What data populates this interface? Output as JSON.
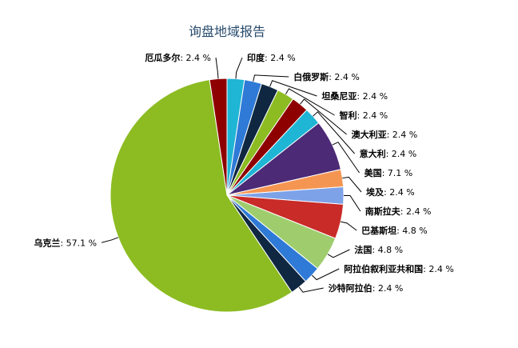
{
  "chart_data": {
    "type": "pie",
    "title": "询盘地域报告",
    "value_suffix": " %",
    "slices": [
      {
        "name": "印度",
        "value": 2.4,
        "color": "#1fb5d4"
      },
      {
        "name": "白俄罗斯",
        "value": 2.4,
        "color": "#2e7ad6"
      },
      {
        "name": "坦桑尼亚",
        "value": 2.4,
        "color": "#0f2741"
      },
      {
        "name": "智利",
        "value": 2.4,
        "color": "#8cbc22"
      },
      {
        "name": "澳大利亚",
        "value": 2.4,
        "color": "#8e0000"
      },
      {
        "name": "意大利",
        "value": 2.4,
        "color": "#1fb5d4"
      },
      {
        "name": "美国",
        "value": 7.1,
        "color": "#4c2a76"
      },
      {
        "name": "埃及",
        "value": 2.4,
        "color": "#f59552"
      },
      {
        "name": "南斯拉夫",
        "value": 2.4,
        "color": "#7da2e8"
      },
      {
        "name": "巴基斯坦",
        "value": 4.8,
        "color": "#c82b28"
      },
      {
        "name": "法国",
        "value": 4.8,
        "color": "#9fcd6e"
      },
      {
        "name": "阿拉伯叙利亚共和国",
        "value": 2.4,
        "color": "#2e7ad6"
      },
      {
        "name": "沙特阿拉伯",
        "value": 2.4,
        "color": "#0f2741"
      },
      {
        "name": "乌克兰",
        "value": 57.1,
        "color": "#8cbc22"
      },
      {
        "name": "厄瓜多尔",
        "value": 2.4,
        "color": "#8e0000"
      }
    ]
  }
}
